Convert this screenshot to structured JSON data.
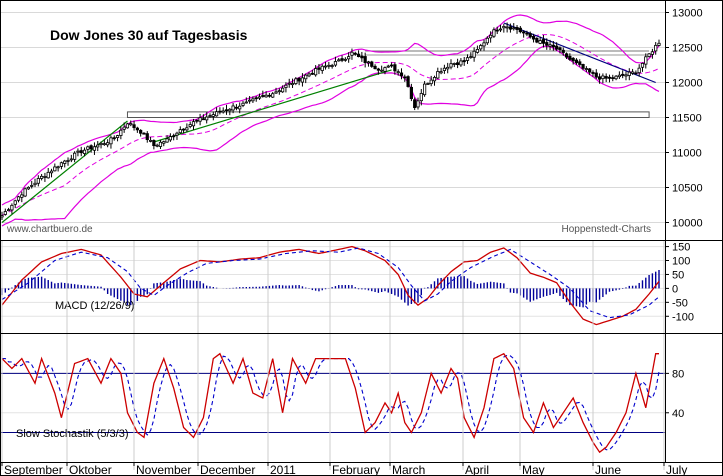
{
  "chart_data": [
    {
      "type": "candlestick",
      "title": "Dow Jones 30 auf Tagesbasis",
      "source_left": "www.chartbuero.de",
      "source_right": "Hoppenstedt-Charts",
      "y_ticks": [
        10000,
        10500,
        11000,
        11500,
        12000,
        12500,
        13000
      ],
      "ylim": [
        9750,
        13150
      ],
      "x_months": [
        "September",
        "Oktober",
        "November",
        "December",
        "2011",
        "February",
        "March",
        "April",
        "May",
        "June",
        "July"
      ],
      "close_anchors": [
        [
          0,
          10100
        ],
        [
          6,
          10420
        ],
        [
          12,
          10650
        ],
        [
          18,
          10850
        ],
        [
          24,
          11020
        ],
        [
          30,
          11120
        ],
        [
          34,
          11200
        ],
        [
          38,
          11430
        ],
        [
          42,
          11300
        ],
        [
          46,
          11100
        ],
        [
          50,
          11180
        ],
        [
          54,
          11330
        ],
        [
          58,
          11430
        ],
        [
          62,
          11510
        ],
        [
          66,
          11580
        ],
        [
          70,
          11650
        ],
        [
          74,
          11700
        ],
        [
          78,
          11780
        ],
        [
          82,
          11850
        ],
        [
          86,
          11950
        ],
        [
          90,
          12050
        ],
        [
          94,
          12150
        ],
        [
          98,
          12230
        ],
        [
          102,
          12300
        ],
        [
          106,
          12420
        ],
        [
          110,
          12300
        ],
        [
          114,
          12200
        ],
        [
          118,
          12220
        ],
        [
          122,
          12090
        ],
        [
          125,
          11650
        ],
        [
          128,
          11960
        ],
        [
          132,
          12150
        ],
        [
          136,
          12270
        ],
        [
          140,
          12300
        ],
        [
          144,
          12460
        ],
        [
          148,
          12700
        ],
        [
          152,
          12820
        ],
        [
          156,
          12760
        ],
        [
          160,
          12650
        ],
        [
          164,
          12550
        ],
        [
          168,
          12480
        ],
        [
          172,
          12330
        ],
        [
          176,
          12200
        ],
        [
          180,
          12080
        ],
        [
          184,
          12050
        ],
        [
          188,
          12100
        ],
        [
          192,
          12150
        ],
        [
          196,
          12400
        ],
        [
          199,
          12580
        ]
      ],
      "support_band": {
        "from_index": 38,
        "to_index": 196,
        "low": 11500,
        "high": 11580
      },
      "resistance_line": {
        "from_index": 110,
        "to_index": 196,
        "value": 12450
      },
      "trend_lines": [
        {
          "points": [
            [
              0,
              10000
            ],
            [
              38,
              11450
            ]
          ],
          "color": "#008000"
        },
        {
          "points": [
            [
              46,
              11150
            ],
            [
              118,
              12180
            ]
          ],
          "color": "#008000"
        },
        {
          "points": [
            [
              152,
              12850
            ],
            [
              198,
              12000
            ]
          ],
          "color": "#000080"
        }
      ],
      "colors": {
        "candle": "#000000",
        "bands": "#e000e0",
        "trend": "#008000",
        "downtrend": "#000080"
      }
    },
    {
      "type": "line",
      "name": "MACD (12/26/9)",
      "y_ticks": [
        150,
        100,
        50,
        0,
        -50,
        -100
      ],
      "ylim": [
        -160,
        170
      ],
      "macd_anchors": [
        [
          0,
          -60
        ],
        [
          6,
          30
        ],
        [
          12,
          95
        ],
        [
          18,
          125
        ],
        [
          24,
          140
        ],
        [
          30,
          120
        ],
        [
          36,
          40
        ],
        [
          40,
          -20
        ],
        [
          44,
          -30
        ],
        [
          48,
          10
        ],
        [
          54,
          70
        ],
        [
          60,
          100
        ],
        [
          66,
          95
        ],
        [
          72,
          105
        ],
        [
          78,
          110
        ],
        [
          84,
          130
        ],
        [
          90,
          140
        ],
        [
          96,
          125
        ],
        [
          102,
          140
        ],
        [
          106,
          150
        ],
        [
          110,
          135
        ],
        [
          116,
          100
        ],
        [
          120,
          50
        ],
        [
          123,
          -25
        ],
        [
          126,
          -60
        ],
        [
          129,
          -35
        ],
        [
          132,
          10
        ],
        [
          136,
          60
        ],
        [
          140,
          95
        ],
        [
          144,
          100
        ],
        [
          148,
          130
        ],
        [
          152,
          145
        ],
        [
          156,
          110
        ],
        [
          160,
          55
        ],
        [
          164,
          40
        ],
        [
          168,
          20
        ],
        [
          172,
          -50
        ],
        [
          176,
          -110
        ],
        [
          180,
          -130
        ],
        [
          184,
          -115
        ],
        [
          188,
          -100
        ],
        [
          192,
          -75
        ],
        [
          196,
          -20
        ],
        [
          199,
          25
        ]
      ],
      "signal_anchors": [
        [
          0,
          -40
        ],
        [
          8,
          20
        ],
        [
          16,
          100
        ],
        [
          24,
          130
        ],
        [
          32,
          110
        ],
        [
          38,
          60
        ],
        [
          42,
          0
        ],
        [
          46,
          -25
        ],
        [
          50,
          10
        ],
        [
          56,
          55
        ],
        [
          62,
          90
        ],
        [
          70,
          100
        ],
        [
          78,
          105
        ],
        [
          86,
          125
        ],
        [
          94,
          135
        ],
        [
          102,
          130
        ],
        [
          108,
          145
        ],
        [
          114,
          125
        ],
        [
          120,
          75
        ],
        [
          124,
          10
        ],
        [
          128,
          -45
        ],
        [
          132,
          -20
        ],
        [
          136,
          25
        ],
        [
          142,
          75
        ],
        [
          148,
          110
        ],
        [
          154,
          140
        ],
        [
          160,
          95
        ],
        [
          166,
          50
        ],
        [
          172,
          0
        ],
        [
          178,
          -80
        ],
        [
          184,
          -105
        ],
        [
          190,
          -95
        ],
        [
          196,
          -60
        ],
        [
          199,
          -30
        ]
      ],
      "colors": {
        "macd": "#cc0000",
        "signal": "#0000cc",
        "histogram": "#000099"
      }
    },
    {
      "type": "line",
      "name": "Slow Stochastik (5/3/3)",
      "y_ticks": [
        80,
        40
      ],
      "ylim": [
        -10,
        120
      ],
      "reference_levels": [
        80,
        20
      ],
      "k_anchors": [
        [
          0,
          95
        ],
        [
          3,
          85
        ],
        [
          6,
          95
        ],
        [
          10,
          70
        ],
        [
          12,
          95
        ],
        [
          16,
          60
        ],
        [
          18,
          35
        ],
        [
          22,
          90
        ],
        [
          26,
          95
        ],
        [
          30,
          70
        ],
        [
          33,
          95
        ],
        [
          36,
          80
        ],
        [
          38,
          40
        ],
        [
          41,
          20
        ],
        [
          43,
          15
        ],
        [
          46,
          70
        ],
        [
          49,
          95
        ],
        [
          52,
          65
        ],
        [
          55,
          25
        ],
        [
          58,
          15
        ],
        [
          61,
          35
        ],
        [
          64,
          95
        ],
        [
          66,
          100
        ],
        [
          70,
          70
        ],
        [
          73,
          95
        ],
        [
          76,
          60
        ],
        [
          79,
          55
        ],
        [
          82,
          95
        ],
        [
          85,
          40
        ],
        [
          88,
          95
        ],
        [
          92,
          70
        ],
        [
          95,
          95
        ],
        [
          99,
          95
        ],
        [
          104,
          95
        ],
        [
          107,
          65
        ],
        [
          110,
          20
        ],
        [
          113,
          30
        ],
        [
          116,
          50
        ],
        [
          118,
          40
        ],
        [
          120,
          60
        ],
        [
          122,
          30
        ],
        [
          124,
          20
        ],
        [
          127,
          40
        ],
        [
          130,
          80
        ],
        [
          133,
          60
        ],
        [
          136,
          85
        ],
        [
          138,
          75
        ],
        [
          140,
          35
        ],
        [
          143,
          15
        ],
        [
          146,
          45
        ],
        [
          149,
          95
        ],
        [
          152,
          100
        ],
        [
          155,
          85
        ],
        [
          158,
          35
        ],
        [
          161,
          20
        ],
        [
          164,
          50
        ],
        [
          167,
          25
        ],
        [
          170,
          40
        ],
        [
          173,
          55
        ],
        [
          176,
          30
        ],
        [
          179,
          10
        ],
        [
          181,
          0
        ],
        [
          183,
          5
        ],
        [
          186,
          20
        ],
        [
          189,
          40
        ],
        [
          192,
          80
        ],
        [
          195,
          45
        ],
        [
          198,
          100
        ]
      ],
      "colors": {
        "k": "#cc0000",
        "d": "#0000cc",
        "levels": "#000080"
      }
    }
  ]
}
